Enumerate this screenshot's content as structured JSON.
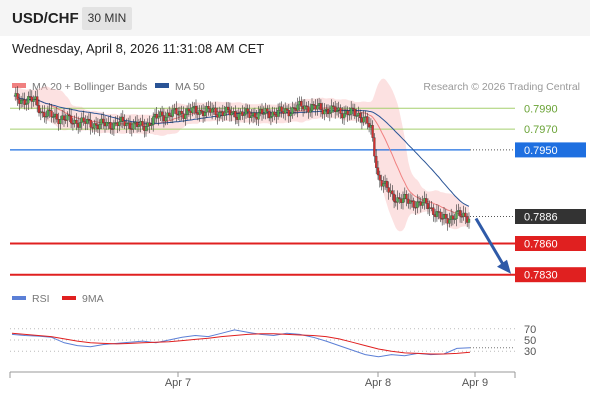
{
  "header": {
    "symbol": "USD/CHF",
    "timeframe": "30 MIN",
    "datetime": "Wednesday, April 8, 2026 11:31:08 AM CET"
  },
  "legend": {
    "ma20_label": "MA 20 + Bollinger Bands",
    "ma50_label": "MA 50",
    "credit": "Research © 2026 Trading Central",
    "ma20_color": "#f08080",
    "ma50_color": "#2a5496"
  },
  "rsi_legend": {
    "rsi_label": "RSI",
    "ma9_label": "9MA",
    "rsi_color": "#5b7fd6",
    "ma9_color": "#e02020"
  },
  "chart_data": [
    {
      "type": "candlestick",
      "title": "USD/CHF 30 MIN",
      "ylim": [
        0.7823,
        0.7998
      ],
      "x_ticks": [
        "Apr 7",
        "Apr 8",
        "Apr 9"
      ],
      "levels": [
        {
          "label": "0.7990",
          "value": 0.799,
          "kind": "resistance",
          "color": "#7cb342"
        },
        {
          "label": "0.7970",
          "value": 0.797,
          "kind": "resistance",
          "color": "#7cb342"
        },
        {
          "label": "0.7950",
          "value": 0.795,
          "kind": "pivot",
          "color": "#1e6fe0"
        },
        {
          "label": "0.7886",
          "value": 0.7886,
          "kind": "last",
          "color": "#333333"
        },
        {
          "label": "0.7860",
          "value": 0.786,
          "kind": "support",
          "color": "#e02020"
        },
        {
          "label": "0.7830",
          "value": 0.783,
          "kind": "support",
          "color": "#e02020"
        }
      ],
      "series": [
        {
          "name": "MA 20",
          "values": [
            0.8,
            0.7999,
            0.7996,
            0.7992,
            0.7987,
            0.7982,
            0.7978,
            0.7975,
            0.7973,
            0.7973,
            0.7974,
            0.7976,
            0.7978,
            0.798,
            0.7982,
            0.7984,
            0.7986,
            0.7987,
            0.7988,
            0.7989,
            0.7989,
            0.7988,
            0.7984,
            0.7975,
            0.796,
            0.794,
            0.7925,
            0.7912,
            0.79,
            0.789
          ]
        },
        {
          "name": "MA 50",
          "values": [
            0.7995,
            0.7994,
            0.7993,
            0.7991,
            0.799,
            0.7989,
            0.7988,
            0.7987,
            0.7986,
            0.7985,
            0.7984,
            0.7983,
            0.7983,
            0.7983,
            0.7984,
            0.7984,
            0.7984,
            0.7985,
            0.7985,
            0.7985,
            0.7986,
            0.7986,
            0.7985,
            0.7983,
            0.798,
            0.7976,
            0.797,
            0.7963,
            0.7955,
            0.795
          ]
        }
      ]
    },
    {
      "type": "line",
      "title": "RSI",
      "ylim": [
        0,
        100
      ],
      "y_ticks": [
        70,
        50,
        30
      ],
      "series": [
        {
          "name": "RSI",
          "values": [
            60,
            58,
            57,
            55,
            45,
            40,
            38,
            42,
            44,
            46,
            48,
            45,
            50,
            55,
            58,
            56,
            62,
            68,
            64,
            60,
            58,
            62,
            60,
            55,
            48,
            40,
            32,
            24,
            20,
            24,
            22,
            26,
            24,
            25,
            35,
            36
          ]
        },
        {
          "name": "9MA",
          "values": [
            62,
            60,
            58,
            56,
            52,
            48,
            45,
            44,
            43,
            44,
            45,
            46,
            47,
            49,
            51,
            53,
            56,
            58,
            60,
            61,
            61,
            60,
            59,
            58,
            56,
            52,
            46,
            40,
            34,
            30,
            27,
            26,
            25,
            25,
            26,
            28
          ]
        }
      ]
    }
  ]
}
